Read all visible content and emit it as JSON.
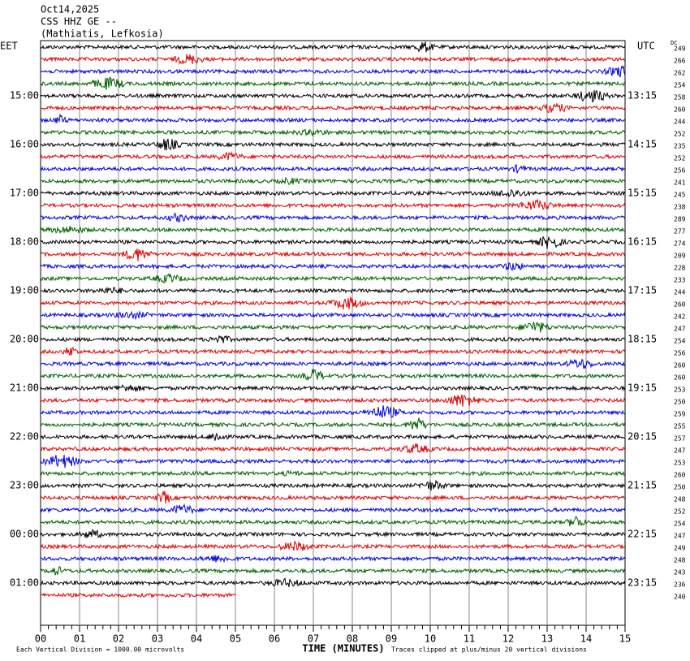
{
  "header": {
    "lines": [
      "Oct14,2025",
      "CSS HHZ GE --",
      "(Mathiatis, Lefkosia)"
    ]
  },
  "left_axis": {
    "title": "EET",
    "labels": [
      "15:00",
      "16:00",
      "17:00",
      "18:00",
      "19:00",
      "20:00",
      "21:00",
      "22:00",
      "23:00",
      "00:00",
      "01:00"
    ]
  },
  "right_axis": {
    "title": "UTC",
    "labels": [
      "13:15",
      "14:15",
      "15:15",
      "16:15",
      "17:15",
      "18:15",
      "19:15",
      "20:15",
      "21:15",
      "22:15",
      "23:15"
    ]
  },
  "dc_label": "DC",
  "dc_values": [
    249,
    266,
    262,
    254,
    258,
    260,
    244,
    252,
    235,
    252,
    256,
    241,
    245,
    238,
    289,
    277,
    274,
    209,
    228,
    233,
    244,
    260,
    242,
    247,
    254,
    256,
    260,
    260,
    253,
    250,
    259,
    255,
    257,
    247,
    253,
    260,
    250,
    248,
    252,
    254,
    247,
    249,
    248,
    243,
    236,
    240
  ],
  "x_axis": {
    "title": "TIME (MINUTES)",
    "labels": [
      "00",
      "01",
      "02",
      "03",
      "04",
      "05",
      "06",
      "07",
      "08",
      "09",
      "10",
      "11",
      "12",
      "13",
      "14",
      "15"
    ]
  },
  "footer": {
    "scale_note": "Each Vertical Division = 1000.00 microvolts",
    "clip_note": "Traces clipped at plus/minus 20 vertical divisions"
  }
}
